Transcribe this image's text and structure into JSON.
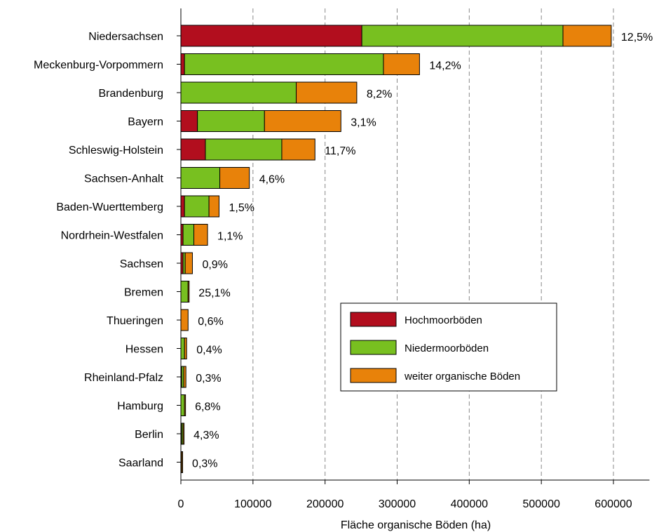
{
  "chart_data": {
    "type": "bar",
    "orientation": "horizontal",
    "stacked": true,
    "xlabel": "Fläche organische Böden (ha)",
    "ylabel": "",
    "title": "",
    "xlim": [
      0,
      650000
    ],
    "xticks": [
      0,
      100000,
      200000,
      300000,
      400000,
      500000,
      600000
    ],
    "xtick_labels": [
      "0",
      "100000",
      "200000",
      "300000",
      "400000",
      "500000",
      "600000"
    ],
    "grid": "vertical dashed",
    "legend_position": "lower-right",
    "categories": [
      "Niedersachsen",
      "Meckenburg-Vorpommern",
      "Brandenburg",
      "Bayern",
      "Schleswig-Holstein",
      "Sachsen-Anhalt",
      "Baden-Wuerttemberg",
      "Nordrhein-Westfalen",
      "Sachsen",
      "Bremen",
      "Thueringen",
      "Hessen",
      "Rheinland-Pfalz",
      "Hamburg",
      "Berlin",
      "Saarland"
    ],
    "series": [
      {
        "name": "Hochmoorböden",
        "color": "#B20E1E",
        "values": [
          251000,
          5000,
          0,
          23000,
          34000,
          0,
          5000,
          3000,
          3000,
          0,
          0,
          0,
          1000,
          0,
          1000,
          0
        ]
      },
      {
        "name": "Niedermoorböden",
        "color": "#78C020",
        "values": [
          279000,
          276000,
          160000,
          93000,
          106000,
          54000,
          34000,
          15000,
          3000,
          10000,
          0,
          5000,
          3000,
          5000,
          2000,
          1000
        ]
      },
      {
        "name": "weiter organische Böden",
        "color": "#E8820A",
        "values": [
          67000,
          50000,
          84000,
          106000,
          46000,
          41000,
          14000,
          19000,
          10000,
          1000,
          10000,
          3000,
          3000,
          1000,
          1000,
          1000
        ]
      }
    ],
    "percent_labels": [
      "12,5%",
      "14,2%",
      "8,2%",
      "3,1%",
      "11,7%",
      "4,6%",
      "1,5%",
      "1,1%",
      "0,9%",
      "25,1%",
      "0,6%",
      "0,4%",
      "0,3%",
      "6,8%",
      "4,3%",
      "0,3%"
    ]
  }
}
